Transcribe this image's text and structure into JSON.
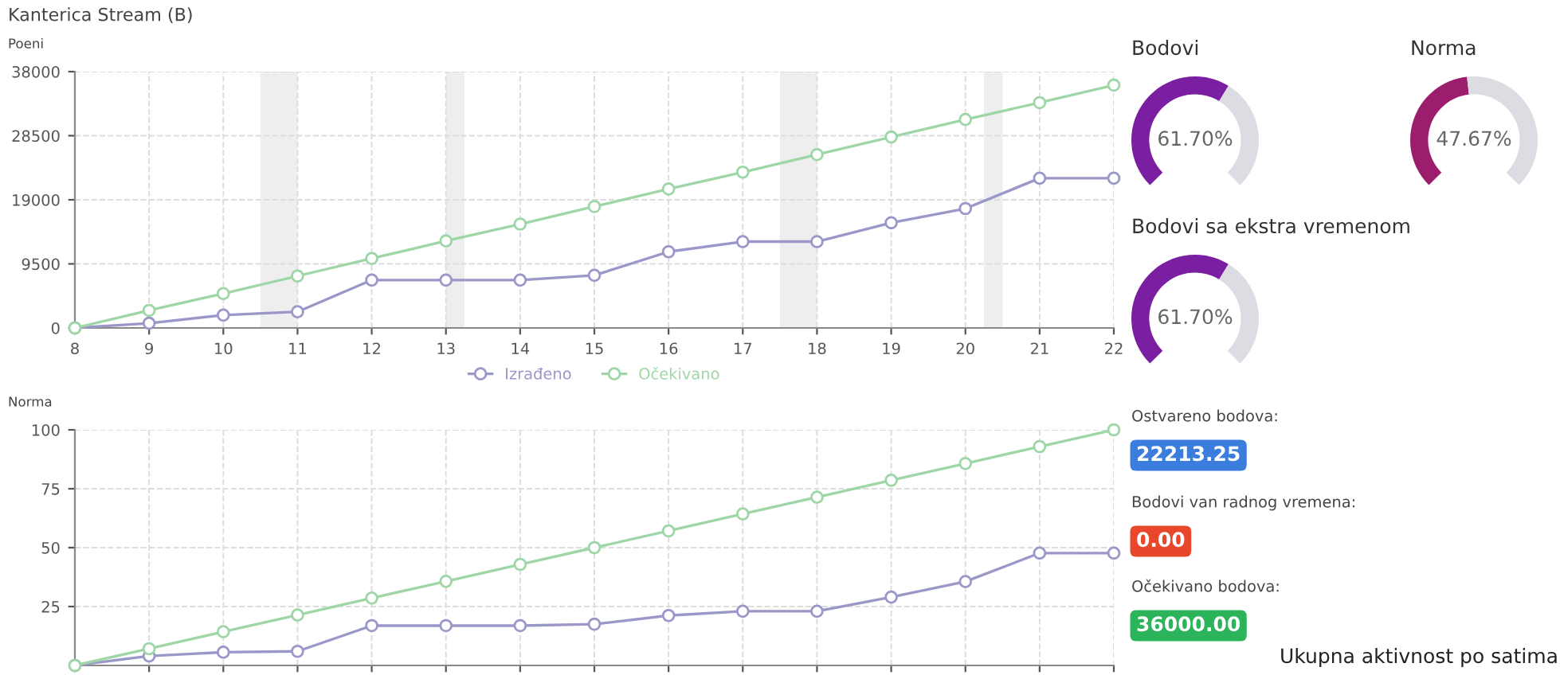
{
  "chart_data": [
    {
      "type": "line",
      "title": "Kanterica Stream (B)",
      "ylabel": "Poeni",
      "x": [
        8,
        9,
        10,
        11,
        12,
        13,
        14,
        15,
        16,
        17,
        18,
        19,
        20,
        21,
        22
      ],
      "xlim": [
        8,
        22
      ],
      "xticks": [
        8,
        9,
        10,
        11,
        12,
        13,
        14,
        15,
        16,
        17,
        18,
        19,
        20,
        21,
        22
      ],
      "ylim": [
        0,
        38000
      ],
      "yticks": [
        0,
        9500,
        19000,
        28500,
        38000
      ],
      "grid": true,
      "legend": "bottom",
      "marker": "circle",
      "line_style": "solid",
      "series": [
        {
          "name": "Izrađeno",
          "color": "#9a97c9",
          "values": [
            0,
            700,
            1900,
            2400,
            7100,
            7100,
            7100,
            7800,
            11300,
            12800,
            12800,
            15600,
            17700,
            22200,
            22200
          ]
        },
        {
          "name": "Očekivano",
          "color": "#9ed6a8",
          "values": [
            0,
            2600,
            5100,
            7700,
            10300,
            12900,
            15400,
            18000,
            20600,
            23100,
            25700,
            28300,
            30900,
            33400,
            36000
          ]
        }
      ],
      "bands": [
        {
          "axis": "x",
          "from": 10.5,
          "to": 11.0,
          "color": "#eeeeee"
        },
        {
          "axis": "x",
          "from": 13.0,
          "to": 13.25,
          "color": "#eeeeee"
        },
        {
          "axis": "x",
          "from": 17.5,
          "to": 18.0,
          "color": "#eeeeee"
        },
        {
          "axis": "x",
          "from": 20.25,
          "to": 20.5,
          "color": "#eeeeee"
        }
      ]
    },
    {
      "type": "line",
      "ylabel": "Norma",
      "x": [
        8,
        9,
        10,
        11,
        12,
        13,
        14,
        15,
        16,
        17,
        18,
        19,
        20,
        21,
        22
      ],
      "xlim": [
        8,
        22
      ],
      "xticks": [
        8,
        9,
        10,
        11,
        12,
        13,
        14,
        15,
        16,
        17,
        18,
        19,
        20,
        21,
        22
      ],
      "ylim": [
        0,
        100
      ],
      "yticks": [
        25,
        50,
        75,
        100
      ],
      "tick_labels": "y",
      "grid": true,
      "marker": "circle",
      "line_style": "solid",
      "series": [
        {
          "color": "#9a97c9",
          "values": [
            0,
            4,
            5.6,
            6,
            16.9,
            16.9,
            16.9,
            17.5,
            21.2,
            23,
            23,
            29,
            35.6,
            47.7,
            47.7
          ]
        },
        {
          "color": "#9ed6a8",
          "values": [
            0,
            7.1,
            14.3,
            21.4,
            28.6,
            35.7,
            42.9,
            50,
            57.1,
            64.3,
            71.4,
            78.6,
            85.7,
            92.9,
            100
          ]
        }
      ]
    },
    {
      "type": "donut",
      "title": "Bodovi",
      "categories": [
        null,
        null
      ],
      "values": [
        61.7,
        38.3
      ],
      "colors": [
        "#7b1fa2",
        "#dcdde2"
      ],
      "value_labels": [
        "61.70%",
        null
      ]
    },
    {
      "type": "donut",
      "title": "Norma",
      "categories": [
        null,
        null
      ],
      "values": [
        47.67,
        52.33
      ],
      "colors": [
        "#9c1c6e",
        "#dcdde2"
      ],
      "value_labels": [
        "47.67%",
        null
      ]
    },
    {
      "type": "donut",
      "title": "Bodovi sa ekstra vremenom",
      "categories": [
        null,
        null
      ],
      "values": [
        61.7,
        38.3
      ],
      "colors": [
        "#7b1fa2",
        "#dcdde2"
      ],
      "value_labels": [
        "61.70%",
        null
      ]
    },
    {
      "type": "other",
      "annotations": [
        "Ostvareno bodova:",
        "22213.25",
        "Bodovi van radnog vremena:",
        "0.00",
        "Očekivano bodova:",
        "36000.00",
        "Ukupna aktivnost po satima"
      ],
      "colors": [
        null,
        "#3b7ddd",
        null,
        "#e8472b",
        null,
        "#2bb45a",
        null
      ]
    }
  ]
}
